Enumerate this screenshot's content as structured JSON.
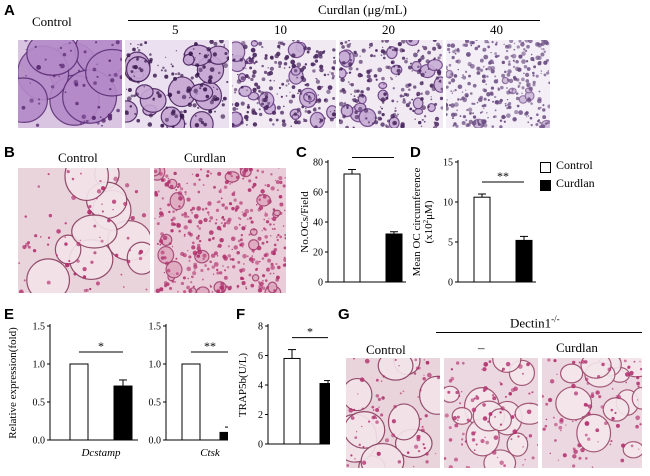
{
  "panel_letters": {
    "A": "A",
    "B": "B",
    "C": "C",
    "D": "D",
    "E": "E",
    "F": "F",
    "G": "G"
  },
  "panelA": {
    "control_label": "Control",
    "treatment_label": "Curdlan (μg/mL)",
    "doses": [
      "5",
      "10",
      "20",
      "40"
    ]
  },
  "panelB": {
    "control_label": "Control",
    "curdlan_label": "Curdlan"
  },
  "panelG": {
    "control_label": "Control",
    "dectin_label": "Dectin1",
    "dectin_sup": "-/-",
    "minus_label": "–",
    "curdlan_label": "Curdlan"
  },
  "legend": {
    "items": [
      {
        "label": "Control",
        "color": "#ffffff"
      },
      {
        "label": "Curdlan",
        "color": "#000000"
      }
    ]
  },
  "colors": {
    "trap_purple": "#8e5aa8",
    "trap_pink": "#c03878",
    "bar_control": "#ffffff",
    "bar_curdlan": "#000000"
  },
  "chart_data": [
    {
      "id": "C",
      "type": "bar",
      "ylabel": "No.OCs/Field",
      "ylim": [
        0,
        80
      ],
      "yticks": [
        0,
        20,
        40,
        60,
        80
      ],
      "categories": [
        "Control",
        "Curdlan"
      ],
      "values": [
        72,
        32
      ],
      "errors": [
        3,
        1.5
      ],
      "significance": "**"
    },
    {
      "id": "D",
      "type": "bar",
      "ylabel": "Mean OC circumference",
      "ylabel2": "(x10",
      "ylabel2_sup": "2",
      "ylabel2_end": "μM)",
      "ylim": [
        0,
        15
      ],
      "yticks": [
        0,
        5,
        10,
        15
      ],
      "categories": [
        "Control",
        "Curdlan"
      ],
      "values": [
        10.6,
        5.2
      ],
      "errors": [
        0.4,
        0.5
      ],
      "significance": "**"
    },
    {
      "id": "E1",
      "type": "bar",
      "ylabel": "Relative expression(fold)",
      "xlabel": "Dcstamp",
      "ylim": [
        0,
        1.5
      ],
      "yticks": [
        "0.0",
        "0.5",
        "1.0",
        "1.5"
      ],
      "categories": [
        "Control",
        "Curdlan"
      ],
      "values": [
        1.0,
        0.71
      ],
      "errors": [
        0,
        0.08
      ],
      "significance": "*"
    },
    {
      "id": "E2",
      "type": "bar",
      "xlabel": "Ctsk",
      "ylim": [
        0,
        1.5
      ],
      "yticks": [
        "0.0",
        "0.5",
        "1.0",
        "1.5"
      ],
      "categories": [
        "Control",
        "Curdlan"
      ],
      "values": [
        1.0,
        0.1
      ],
      "errors": [
        0,
        0.07
      ],
      "significance": "**"
    },
    {
      "id": "F",
      "type": "bar",
      "ylabel": "TRAP5b(U/L)",
      "ylim": [
        0,
        8
      ],
      "yticks": [
        0,
        2,
        4,
        6,
        8
      ],
      "categories": [
        "Control",
        "Curdlan"
      ],
      "values": [
        5.8,
        4.1
      ],
      "errors": [
        0.6,
        0.2
      ],
      "significance": "*"
    }
  ]
}
